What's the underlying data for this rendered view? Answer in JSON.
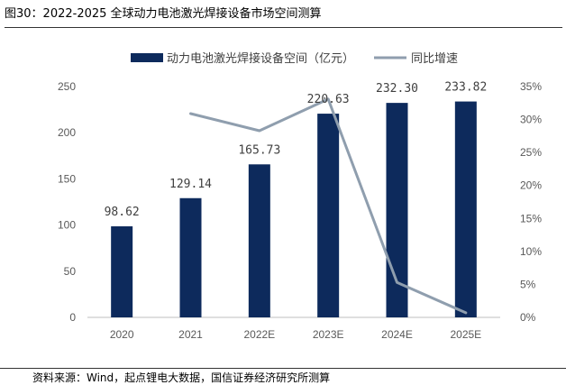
{
  "title": "图30：2022-2025 全球动力电池激光焊接设备市场空间测算",
  "source": "资料来源：Wind，起点锂电大数据，国信证券经济研究所测算",
  "chart_data": {
    "type": "bar",
    "categories": [
      "2020",
      "2021",
      "2022E",
      "2023E",
      "2024E",
      "2025E"
    ],
    "series": [
      {
        "name": "动力电池激光焊接设备空间（亿元）",
        "type": "bar",
        "axis": "left",
        "color": "#0d2a5c",
        "values": [
          98.62,
          129.14,
          165.73,
          220.63,
          232.3,
          233.82
        ],
        "labels": [
          "98.62",
          "129.14",
          "165.73",
          "220.63",
          "232.30",
          "233.82"
        ]
      },
      {
        "name": "同比增速",
        "type": "line",
        "axis": "right",
        "color": "#8f9eae",
        "values": [
          null,
          30.9,
          28.3,
          33.1,
          5.3,
          0.7
        ]
      }
    ],
    "y_left": {
      "lim": [
        0,
        250
      ],
      "ticks": [
        "0",
        "50",
        "100",
        "150",
        "200",
        "250"
      ]
    },
    "y_right": {
      "lim": [
        0,
        35
      ],
      "ticks": [
        "0%",
        "5%",
        "10%",
        "15%",
        "20%",
        "25%",
        "30%",
        "35%"
      ]
    },
    "legend_position": "top-center",
    "grid": false
  }
}
